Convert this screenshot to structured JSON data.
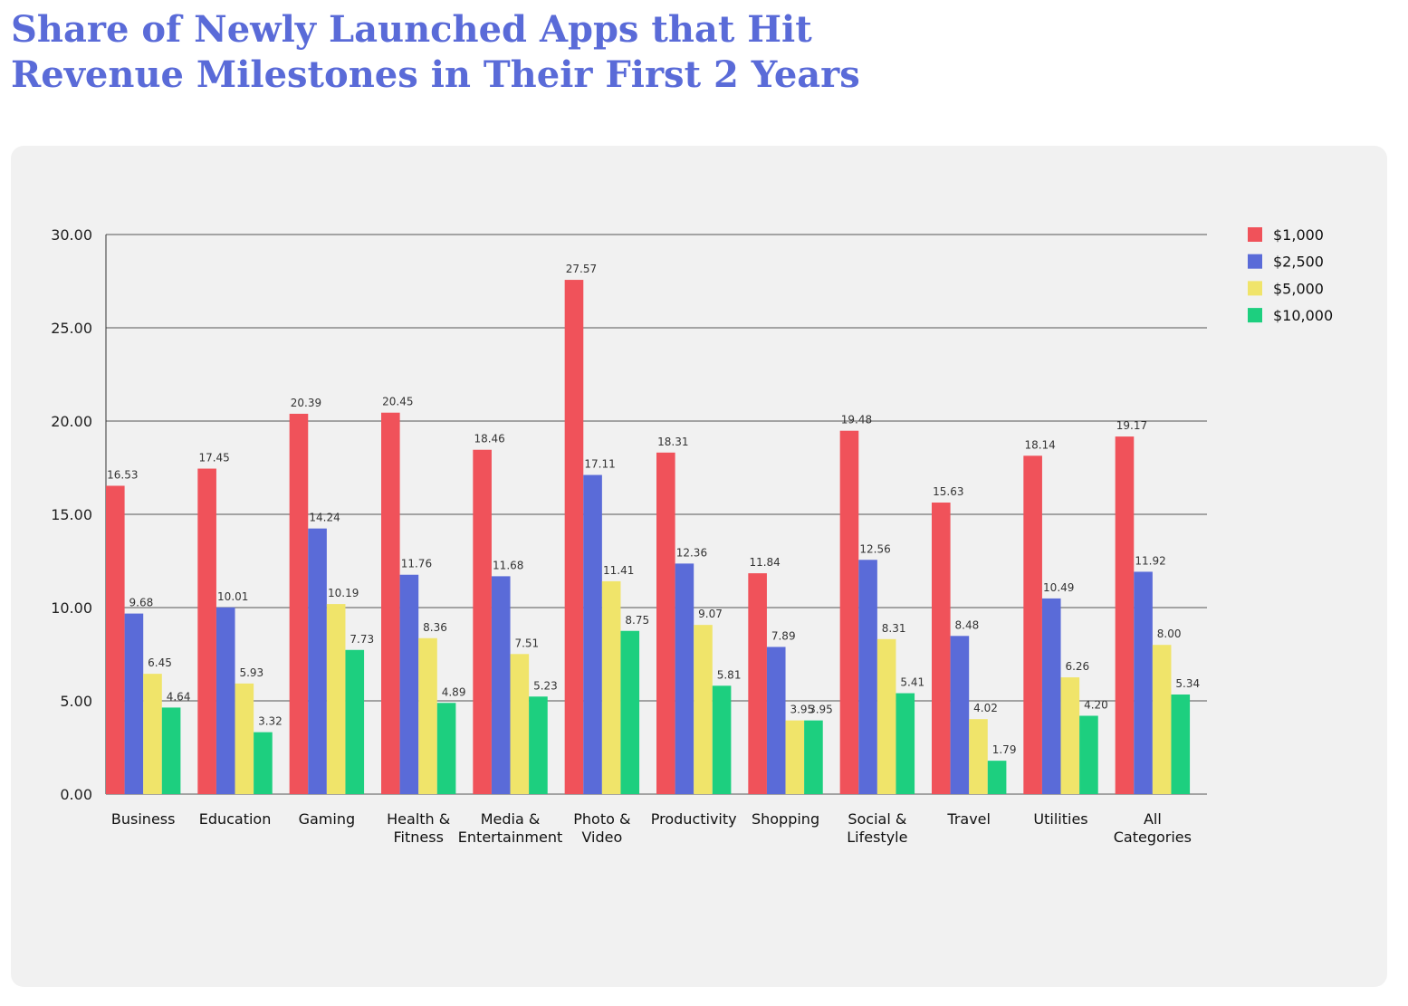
{
  "chart_data": {
    "type": "bar",
    "title": [
      "Share of Newly Launched Apps that Hit",
      "Revenue Milestones in Their First 2 Years"
    ],
    "categories": [
      "Business",
      "Education",
      "Gaming",
      "Health & Fitness",
      "Media & Entertainment",
      "Photo & Video",
      "Productivity",
      "Shopping",
      "Social & Lifestyle",
      "Travel",
      "Utilities",
      "All Categories"
    ],
    "series": [
      {
        "name": "$1,000",
        "color": "#f0525a",
        "values": [
          16.53,
          17.45,
          20.39,
          20.45,
          18.46,
          27.57,
          18.31,
          11.84,
          19.48,
          15.63,
          18.14,
          19.17
        ],
        "value_labels": [
          "16.53",
          "17.45",
          "20.39",
          "20.45",
          "18.46",
          "27.57",
          "18.31",
          "11.84",
          "19.48",
          "15.63",
          "18.14",
          "19.17"
        ]
      },
      {
        "name": "$2,500",
        "color": "#5a6bd8",
        "values": [
          9.68,
          10.01,
          14.24,
          11.76,
          11.68,
          17.11,
          12.36,
          7.89,
          12.56,
          8.48,
          10.49,
          11.92
        ],
        "value_labels": [
          "9.68",
          "10.01",
          "14.24",
          "11.76",
          "11.68",
          "17.11",
          "12.36",
          "7.89",
          "12.56",
          "8.48",
          "10.49",
          "11.92"
        ]
      },
      {
        "name": "$5,000",
        "color": "#f0e46a",
        "values": [
          6.45,
          5.93,
          10.19,
          8.36,
          7.51,
          11.41,
          9.07,
          3.95,
          8.31,
          4.02,
          6.26,
          8.0
        ],
        "value_labels": [
          "6.45",
          "5.93",
          "10.19",
          "8.36",
          "7.51",
          "11.41",
          "9.07",
          "3.95",
          "8.31",
          "4.02",
          "6.26",
          "8.00"
        ]
      },
      {
        "name": "$10,000",
        "color": "#1dcf7f",
        "values": [
          4.64,
          3.32,
          7.73,
          4.89,
          5.23,
          8.75,
          5.81,
          3.95,
          5.41,
          1.79,
          4.2,
          5.34
        ],
        "value_labels": [
          "4.64",
          "3.32",
          "7.73",
          "4.89",
          "5.23",
          "8.75",
          "5.81",
          "3.95",
          "5.41",
          "1.79",
          "4.20",
          "5.34"
        ]
      }
    ],
    "ylim": [
      0,
      30
    ],
    "yticks": [
      {
        "value": 0,
        "label": "0.00"
      },
      {
        "value": 5,
        "label": "5.00"
      },
      {
        "value": 10,
        "label": "10.00"
      },
      {
        "value": 15,
        "label": "15.00"
      },
      {
        "value": 20,
        "label": "20.00"
      },
      {
        "value": 25,
        "label": "25.00"
      },
      {
        "value": 30,
        "label": "30.00"
      }
    ],
    "grid": true,
    "legend": "right"
  }
}
